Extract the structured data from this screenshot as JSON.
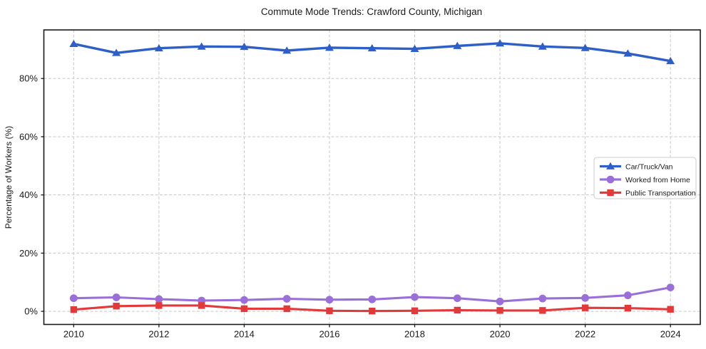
{
  "figure": {
    "title": "Commute Mode Trends: Crawford County, Michigan",
    "background": "#ffffff"
  },
  "chart_data": {
    "type": "line",
    "title": "Commute Mode Trends: Crawford County, Michigan",
    "xlabel": "",
    "ylabel": "Percentage of Workers (%)",
    "x": [
      2010,
      2011,
      2012,
      2013,
      2014,
      2015,
      2016,
      2017,
      2018,
      2019,
      2020,
      2021,
      2022,
      2023,
      2024
    ],
    "series": [
      {
        "name": "Car/Truck/Van",
        "marker": "triangle",
        "color": "#2e5fc7",
        "values": [
          91.9,
          88.8,
          90.4,
          91.0,
          90.9,
          89.6,
          90.6,
          90.4,
          90.2,
          91.2,
          92.1,
          91.0,
          90.5,
          88.6,
          86.0
        ]
      },
      {
        "name": "Worked from Home",
        "marker": "circle",
        "color": "#9a70d8",
        "values": [
          4.5,
          4.8,
          4.2,
          3.7,
          3.9,
          4.3,
          4.0,
          4.1,
          4.9,
          4.5,
          3.4,
          4.4,
          4.6,
          5.5,
          8.2
        ]
      },
      {
        "name": "Public Transportation",
        "marker": "square",
        "color": "#e23a3a",
        "values": [
          0.6,
          1.8,
          2.0,
          2.0,
          0.9,
          0.9,
          0.2,
          0.1,
          0.2,
          0.4,
          0.3,
          0.3,
          1.2,
          1.1,
          0.7
        ]
      }
    ],
    "xticks": [
      2010,
      2012,
      2014,
      2016,
      2018,
      2020,
      2022,
      2024
    ],
    "yticks": [
      0,
      20,
      40,
      60,
      80
    ],
    "ytick_suffix": "%",
    "xlim": [
      2009.3,
      2024.7
    ],
    "ylim": [
      -4.5,
      96.7
    ],
    "grid": true,
    "legend_position": "center-right"
  },
  "style": {
    "grid_color": "#c8c8c8",
    "axis_color": "#1a1a1a",
    "text_color": "#1a1a1a",
    "legend_border": "#cccccc",
    "legend_bg": "#ffffff"
  }
}
